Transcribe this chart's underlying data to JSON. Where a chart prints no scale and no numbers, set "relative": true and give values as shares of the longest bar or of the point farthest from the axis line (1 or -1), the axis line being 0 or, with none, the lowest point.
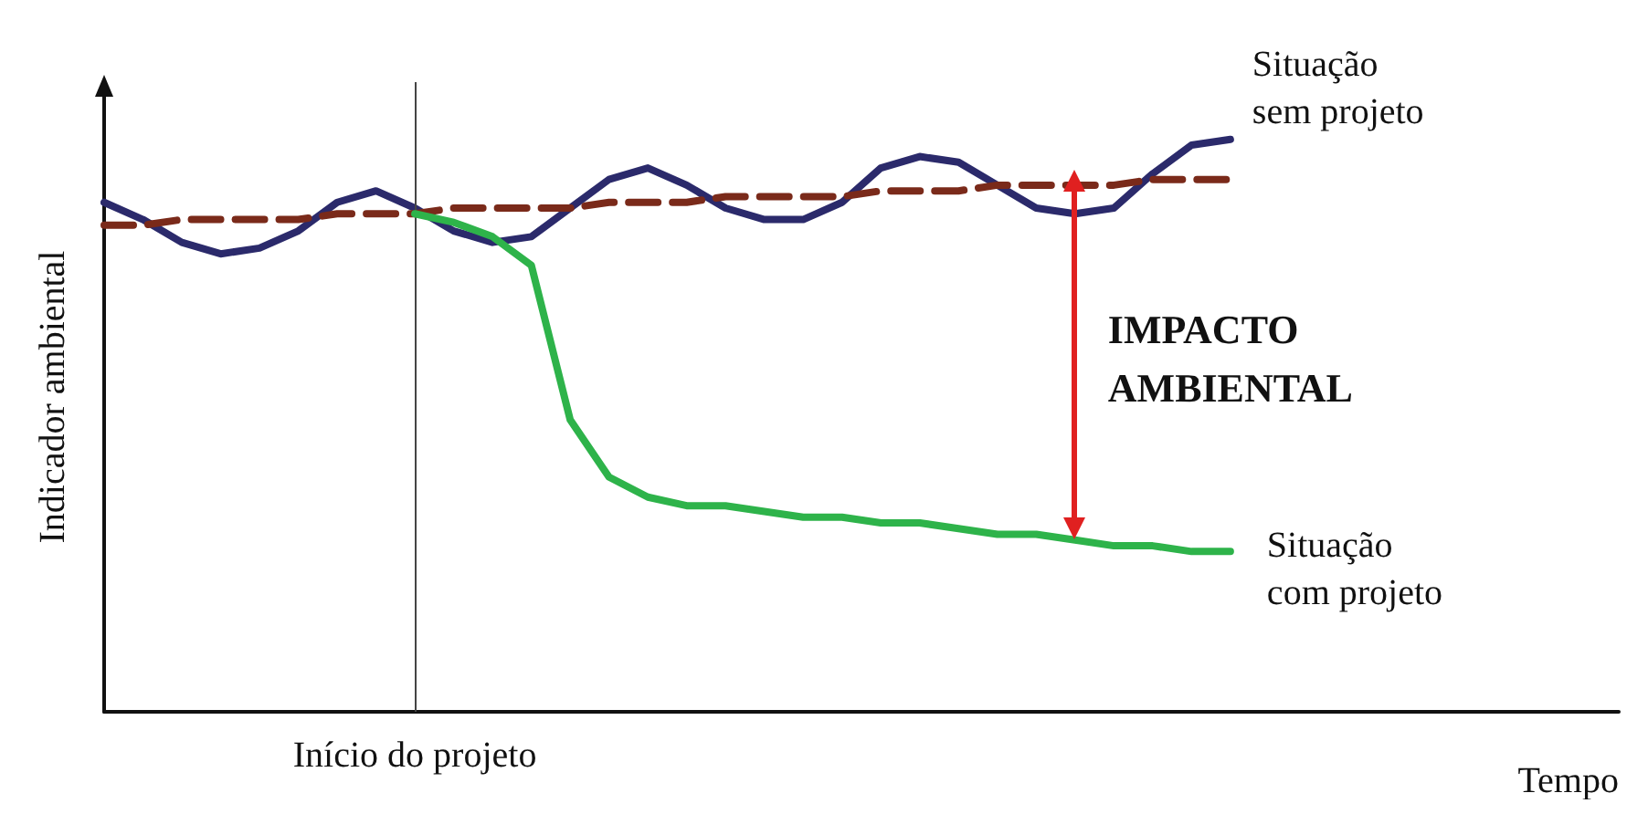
{
  "chart_data": {
    "type": "line",
    "relative": true,
    "xlabel": "Tempo",
    "ylabel": "Indicador ambiental",
    "legend": false,
    "marker": "none",
    "categories": [
      null,
      null,
      null,
      null,
      null,
      null,
      null,
      null,
      null,
      null,
      null,
      null,
      null,
      null,
      null,
      null,
      null,
      null,
      null,
      null,
      null,
      null,
      null,
      null,
      null,
      null,
      null,
      null,
      null,
      null,
      null,
      null,
      null,
      null,
      null,
      null,
      null,
      null,
      null,
      null
    ],
    "series": [
      {
        "name": "Situação sem projeto",
        "color": "#2b2a6b",
        "values": [
          0.89,
          0.86,
          0.82,
          0.8,
          0.81,
          0.84,
          0.89,
          0.91,
          0.88,
          0.84,
          0.82,
          0.83,
          0.88,
          0.93,
          0.95,
          0.92,
          0.88,
          0.86,
          0.86,
          0.89,
          0.95,
          0.97,
          0.96,
          0.92,
          0.88,
          0.87,
          0.88,
          0.94,
          0.99,
          1,
          null,
          null,
          null,
          null,
          null,
          null,
          null,
          null,
          null,
          null
        ]
      },
      {
        "color": "#7a2a1a",
        "line_style": "dashed",
        "values": [
          0.85,
          0.85,
          0.86,
          0.86,
          0.86,
          0.86,
          0.87,
          0.87,
          0.87,
          0.88,
          0.88,
          0.88,
          0.88,
          0.89,
          0.89,
          0.89,
          0.9,
          0.9,
          0.9,
          0.9,
          0.91,
          0.91,
          0.91,
          0.92,
          0.92,
          0.92,
          0.92,
          0.93,
          0.93,
          0.93,
          null,
          null,
          null,
          null,
          null,
          null,
          null,
          null,
          null,
          null
        ]
      },
      {
        "name": "Situação com projeto",
        "color": "#2eb34a",
        "values": [
          null,
          null,
          null,
          null,
          null,
          null,
          null,
          null,
          0.87,
          0.855,
          0.83,
          0.78,
          0.51,
          0.41,
          0.375,
          0.36,
          0.36,
          0.35,
          0.34,
          0.34,
          0.33,
          0.33,
          0.32,
          0.31,
          0.31,
          0.3,
          0.29,
          0.29,
          0.28,
          0.28,
          null,
          null,
          null,
          null,
          null,
          null,
          null,
          null,
          null,
          null
        ]
      }
    ],
    "ref_lines": [
      {
        "axis": "x",
        "label": "Início do projeto",
        "color": "#444444"
      }
    ],
    "annotations": [
      "IMPACTO AMBIENTAL"
    ]
  }
}
